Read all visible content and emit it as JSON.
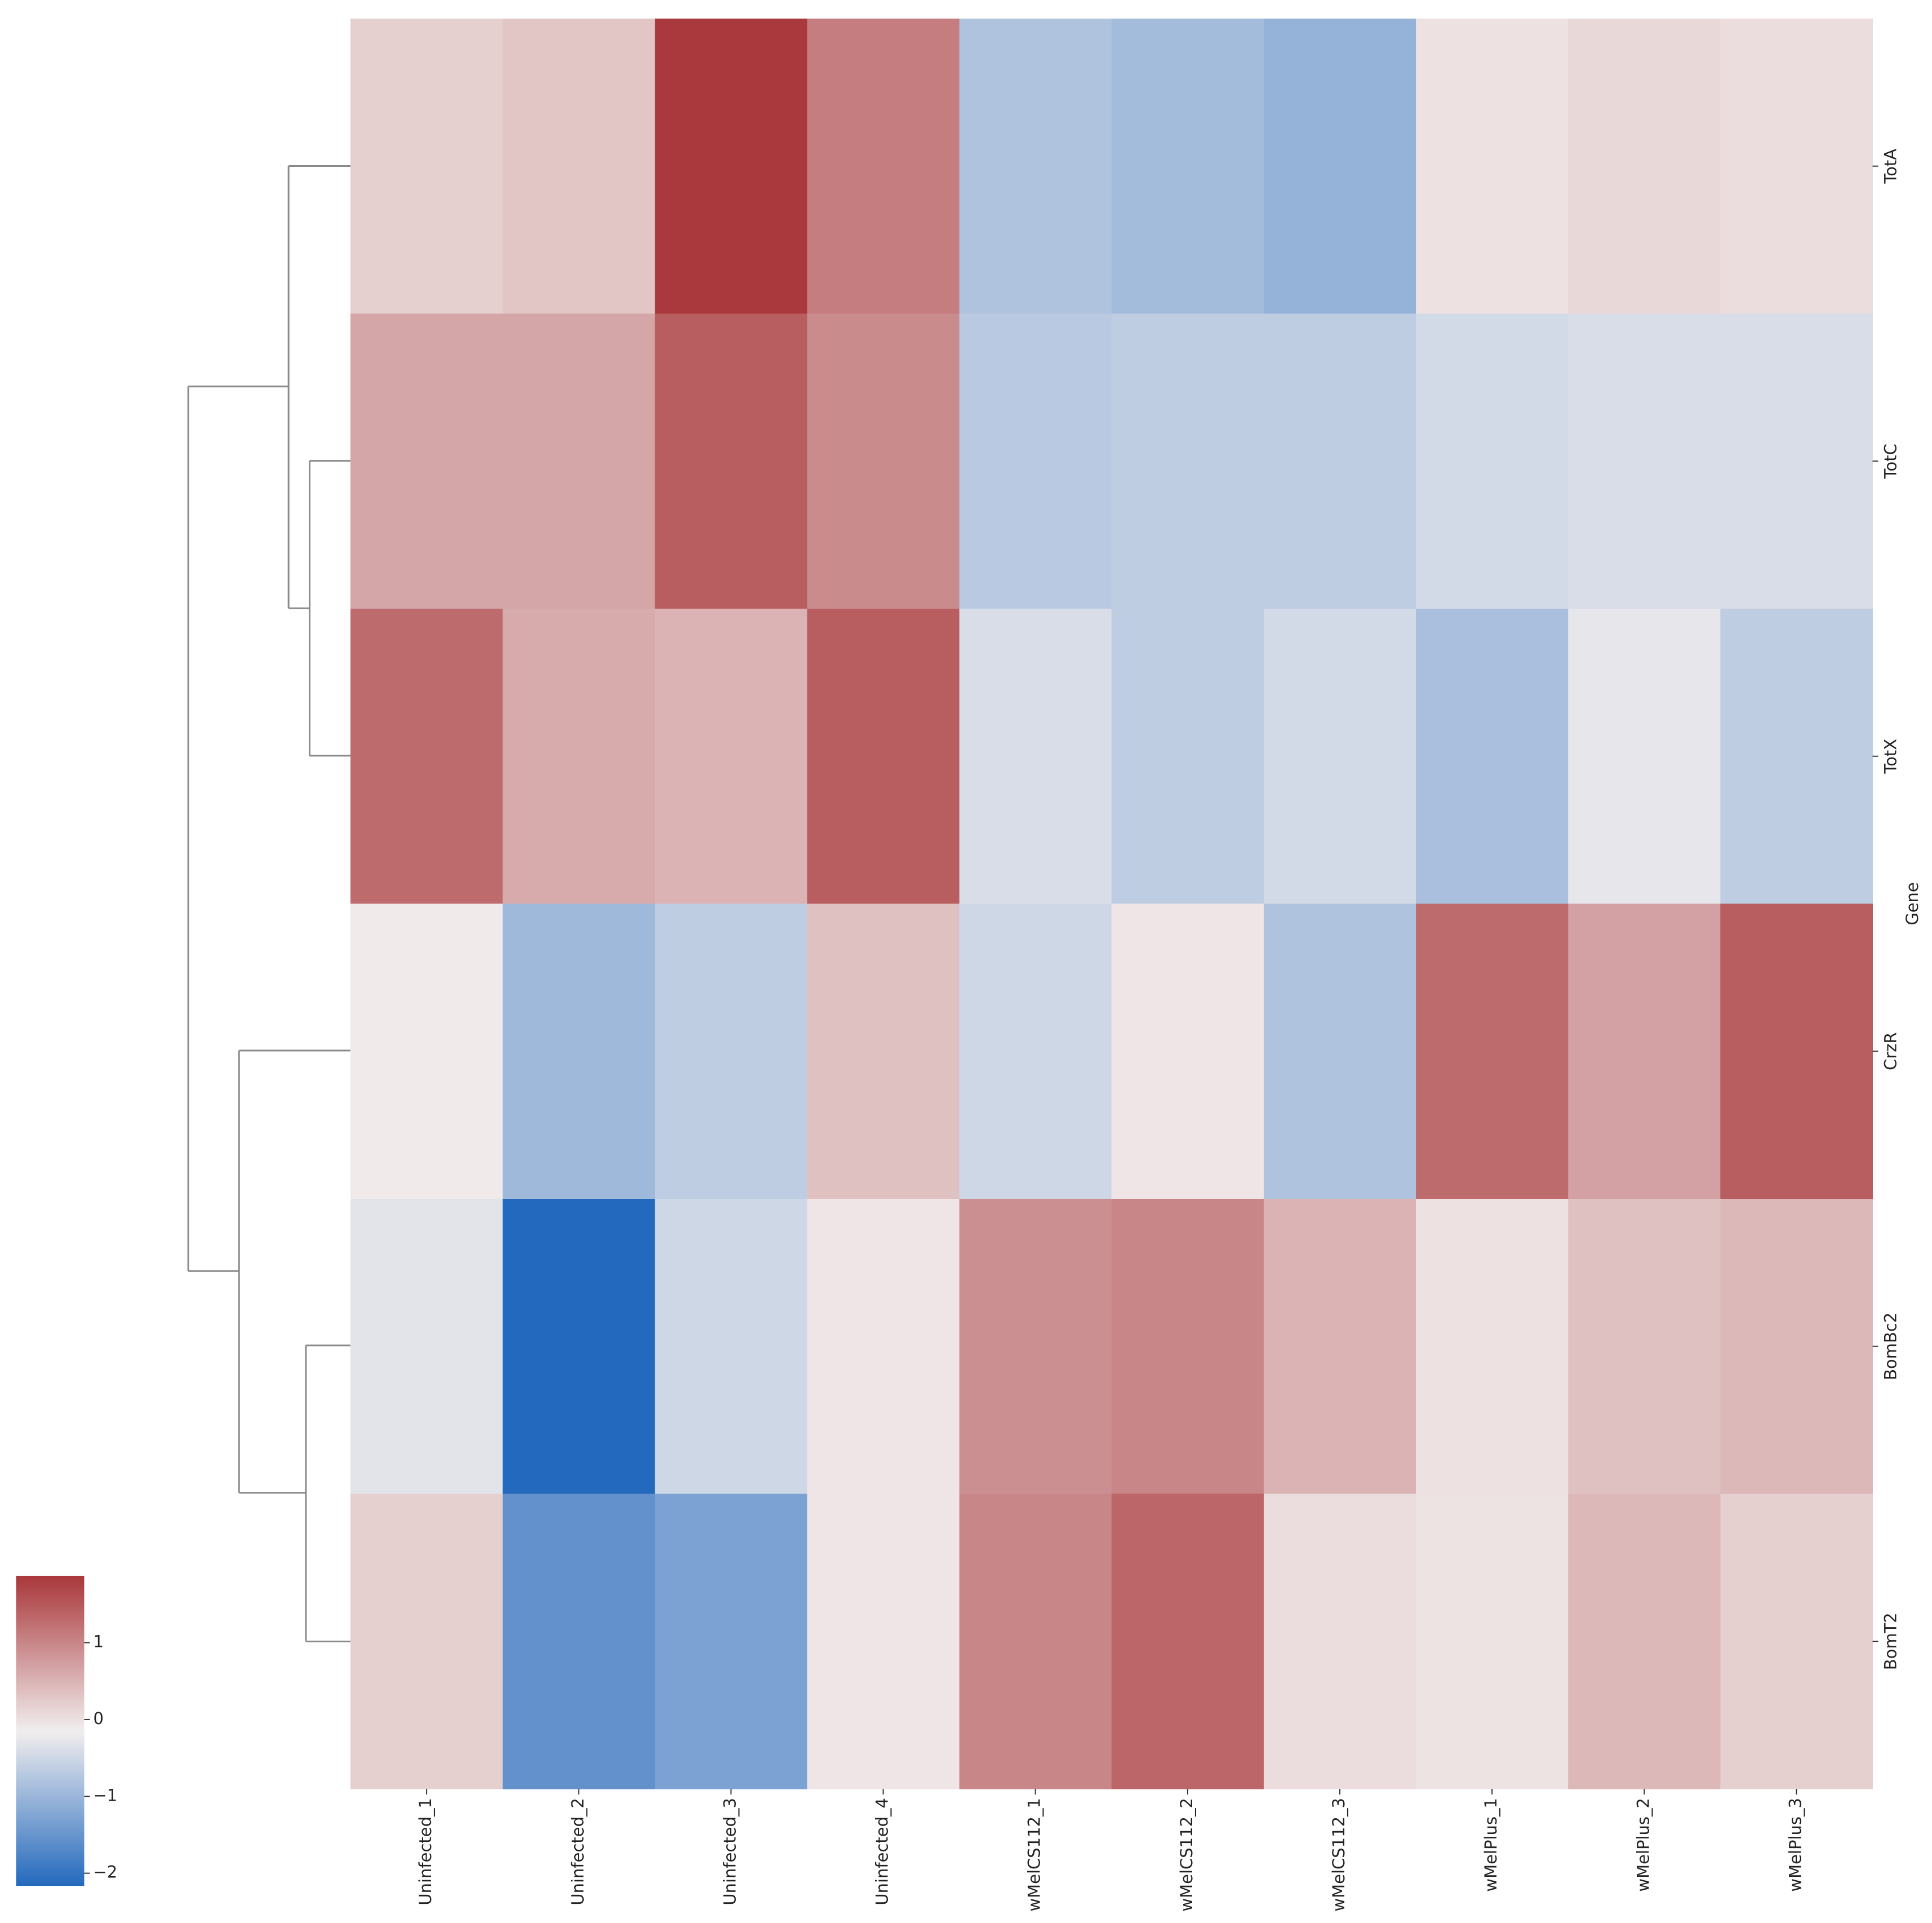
{
  "chart_data": {
    "type": "heatmap",
    "ylabel": "Gene",
    "x_categories": [
      "Uninfected_1",
      "Uninfected_2",
      "Uninfected_3",
      "Uninfected_4",
      "wMelCS112_1",
      "wMelCS112_2",
      "wMelCS112_3",
      "wMelPlus_1",
      "wMelPlus_2",
      "wMelPlus_3"
    ],
    "y_categories": [
      "TotA",
      "TotC",
      "TotX",
      "CrzR",
      "BomBc2",
      "BomT2"
    ],
    "values": [
      [
        0.2,
        0.3,
        1.85,
        1.1,
        -0.8,
        -0.9,
        -1.05,
        0.0,
        0.1,
        0.05
      ],
      [
        0.65,
        0.65,
        1.45,
        0.95,
        -0.7,
        -0.65,
        -0.65,
        -0.45,
        -0.4,
        -0.4
      ],
      [
        1.3,
        0.6,
        0.5,
        1.45,
        -0.4,
        -0.65,
        -0.45,
        -0.85,
        -0.25,
        -0.65
      ],
      [
        -0.1,
        -0.95,
        -0.65,
        0.35,
        -0.5,
        -0.05,
        -0.8,
        1.3,
        0.7,
        1.45
      ],
      [
        -0.3,
        -2.16,
        -0.5,
        -0.05,
        0.9,
        1.0,
        0.5,
        0.0,
        0.35,
        0.45
      ],
      [
        0.2,
        -1.55,
        -1.3,
        -0.05,
        1.0,
        1.35,
        0.05,
        -0.02,
        0.45,
        0.2
      ]
    ],
    "clim": [
      -2.16,
      1.87
    ],
    "cticks": [
      {
        "value": -2,
        "label": "−2"
      },
      {
        "value": -1,
        "label": "−1"
      },
      0,
      1
    ],
    "colormap": [
      "#2369bd",
      "#f2eeee",
      "#a9373b"
    ]
  }
}
